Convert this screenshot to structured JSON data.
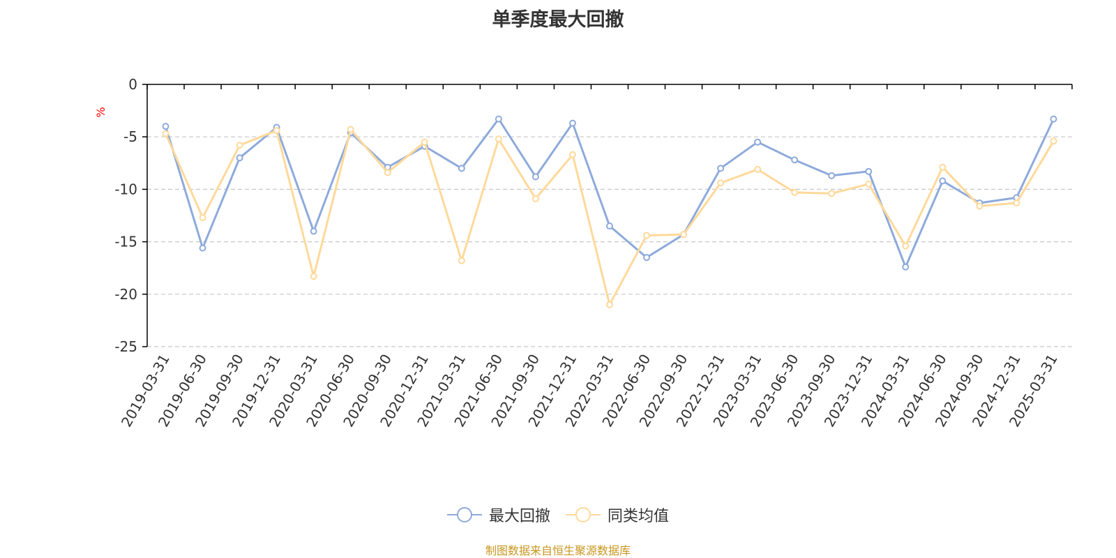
{
  "chart_data": {
    "type": "line",
    "title": "单季度最大回撤",
    "ylabel": "%",
    "ylim": [
      -25,
      0
    ],
    "y_ticks": [
      0,
      -5,
      -10,
      -15,
      -20,
      -25
    ],
    "grid": true,
    "legend_position": "bottom",
    "categories": [
      "2019-03-31",
      "2019-06-30",
      "2019-09-30",
      "2019-12-31",
      "2020-03-31",
      "2020-06-30",
      "2020-09-30",
      "2020-12-31",
      "2021-03-31",
      "2021-06-30",
      "2021-09-30",
      "2021-12-31",
      "2022-03-31",
      "2022-06-30",
      "2022-09-30",
      "2022-12-31",
      "2023-03-31",
      "2023-06-30",
      "2023-09-30",
      "2023-12-31",
      "2024-03-31",
      "2024-06-30",
      "2024-09-30",
      "2024-12-31",
      "2025-03-31"
    ],
    "series": [
      {
        "name": "最大回撤",
        "color": "#8eaadb",
        "values": [
          -4.0,
          -15.6,
          -7.0,
          -4.1,
          -14.0,
          -4.6,
          -7.9,
          -5.9,
          -8.0,
          -3.3,
          -8.8,
          -3.7,
          -13.5,
          -16.5,
          -14.3,
          -8.0,
          -5.5,
          -7.2,
          -8.7,
          -8.3,
          -17.4,
          -9.2,
          -11.3,
          -10.8,
          -3.3
        ]
      },
      {
        "name": "同类均值",
        "color": "#ffd99a",
        "values": [
          -4.7,
          -12.7,
          -5.8,
          -4.4,
          -18.3,
          -4.3,
          -8.4,
          -5.5,
          -16.8,
          -5.2,
          -10.9,
          -6.7,
          -21.0,
          -14.4,
          -14.3,
          -9.4,
          -8.1,
          -10.3,
          -10.4,
          -9.5,
          -15.4,
          -7.9,
          -11.6,
          -11.3,
          -5.4
        ]
      }
    ],
    "title_color": "#333333",
    "unit_color": "#ff0000",
    "grid_color": "#c8c8c8",
    "axis_color": "#000000"
  },
  "legend": {
    "items": [
      "最大回撤",
      "同类均值"
    ]
  },
  "footer": {
    "source": "制图数据来自恒生聚源数据库",
    "color": "#c8961e"
  }
}
